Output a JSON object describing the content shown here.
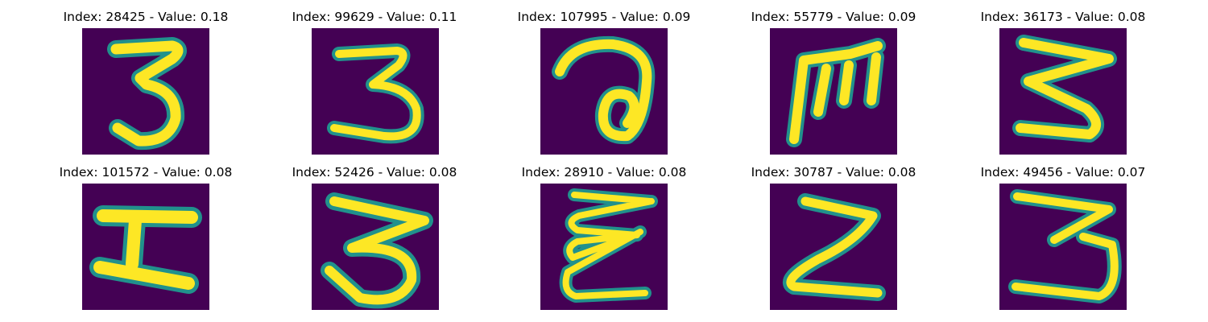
{
  "colors": {
    "background": "#440154",
    "low": "#3b528b",
    "mid": "#21918c",
    "high": "#5ec962",
    "peak": "#fde725"
  },
  "panels": [
    {
      "title": "Index: 28425 - Value: 0.18",
      "digit": "3",
      "index": 28425,
      "value": 0.18
    },
    {
      "title": "Index: 99629 - Value: 0.11",
      "digit": "3",
      "index": 99629,
      "value": 0.11
    },
    {
      "title": "Index: 107995 - Value: 0.09",
      "digit": "a",
      "index": 107995,
      "value": 0.09
    },
    {
      "title": "Index: 55779 - Value: 0.09",
      "digit": "m",
      "index": 55779,
      "value": 0.09
    },
    {
      "title": "Index: 36173 - Value: 0.08",
      "digit": "3",
      "index": 36173,
      "value": 0.08
    },
    {
      "title": "Index: 101572 - Value: 0.08",
      "digit": "I",
      "index": 101572,
      "value": 0.08
    },
    {
      "title": "Index: 52426 - Value: 0.08",
      "digit": "3",
      "index": 52426,
      "value": 0.08
    },
    {
      "title": "Index: 28910 - Value: 0.08",
      "digit": "E",
      "index": 28910,
      "value": 0.08
    },
    {
      "title": "Index: 30787 - Value: 0.08",
      "digit": "Z",
      "index": 30787,
      "value": 0.08
    },
    {
      "title": "Index: 49456 - Value: 0.07",
      "digit": "3",
      "index": 49456,
      "value": 0.07
    }
  ]
}
